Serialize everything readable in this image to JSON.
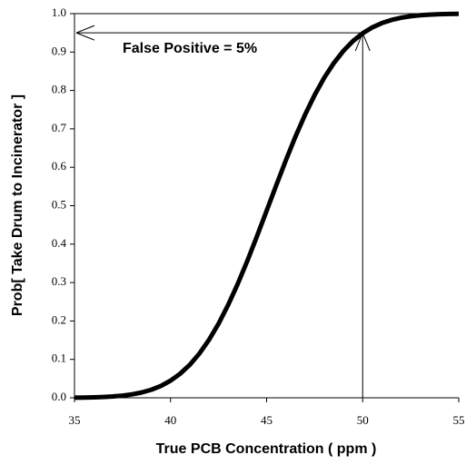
{
  "chart_data": {
    "type": "line",
    "x_label": "True PCB Concentration ( ppm )",
    "y_label": "Prob[ Take Drum to Incinerator ]",
    "annotation": "False Positive = 5%",
    "reference": {
      "x": 50,
      "y": 0.95
    },
    "x": [
      35,
      35.5,
      36,
      36.5,
      37,
      37.5,
      38,
      38.5,
      39,
      39.5,
      40,
      40.5,
      41,
      41.5,
      42,
      42.5,
      43,
      43.5,
      44,
      44.5,
      45,
      45.5,
      46,
      46.5,
      47,
      47.5,
      48,
      48.5,
      49,
      49.5,
      50,
      50.5,
      51,
      51.5,
      52,
      52.5,
      53,
      53.5,
      54,
      54.5,
      55
    ],
    "series": [
      {
        "color": "#000000",
        "values": [
          0.0004,
          0.0007,
          0.0012,
          0.0021,
          0.0035,
          0.0057,
          0.009,
          0.0139,
          0.021,
          0.031,
          0.0446,
          0.0626,
          0.0858,
          0.1151,
          0.1507,
          0.193,
          0.242,
          0.2969,
          0.3569,
          0.4207,
          0.4867,
          0.553,
          0.6179,
          0.6797,
          0.7367,
          0.7881,
          0.8332,
          0.8714,
          0.9032,
          0.9288,
          0.9488,
          0.9641,
          0.9754,
          0.9836,
          0.9893,
          0.9932,
          0.9958,
          0.9974,
          0.9985,
          0.9991,
          0.9995
        ]
      }
    ],
    "xlim": [
      35,
      55
    ],
    "xticks": [
      35,
      40,
      45,
      50,
      55
    ],
    "ylim": [
      0,
      1
    ],
    "yticks": [
      {
        "value": 0,
        "label": "0.0"
      },
      0.1,
      0.2,
      0.3,
      0.4,
      0.5,
      0.6,
      0.7,
      0.8,
      0.9,
      {
        "value": 1,
        "label": "1.0"
      }
    ]
  }
}
